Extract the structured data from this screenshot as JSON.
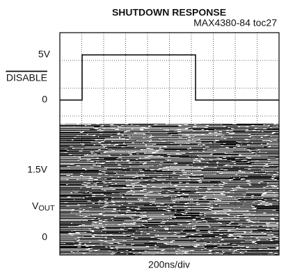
{
  "title": "SHUTDOWN RESPONSE",
  "figure_id": "MAX4380-84 toc27",
  "labels": {
    "disable_high": "5V",
    "disable_name": "DISABLE",
    "disable_low": "0",
    "vout_level": "1.5V",
    "vout_name": "V",
    "vout_sub": "OUT",
    "vout_low": "0"
  },
  "x_scale": "200ns/div"
}
